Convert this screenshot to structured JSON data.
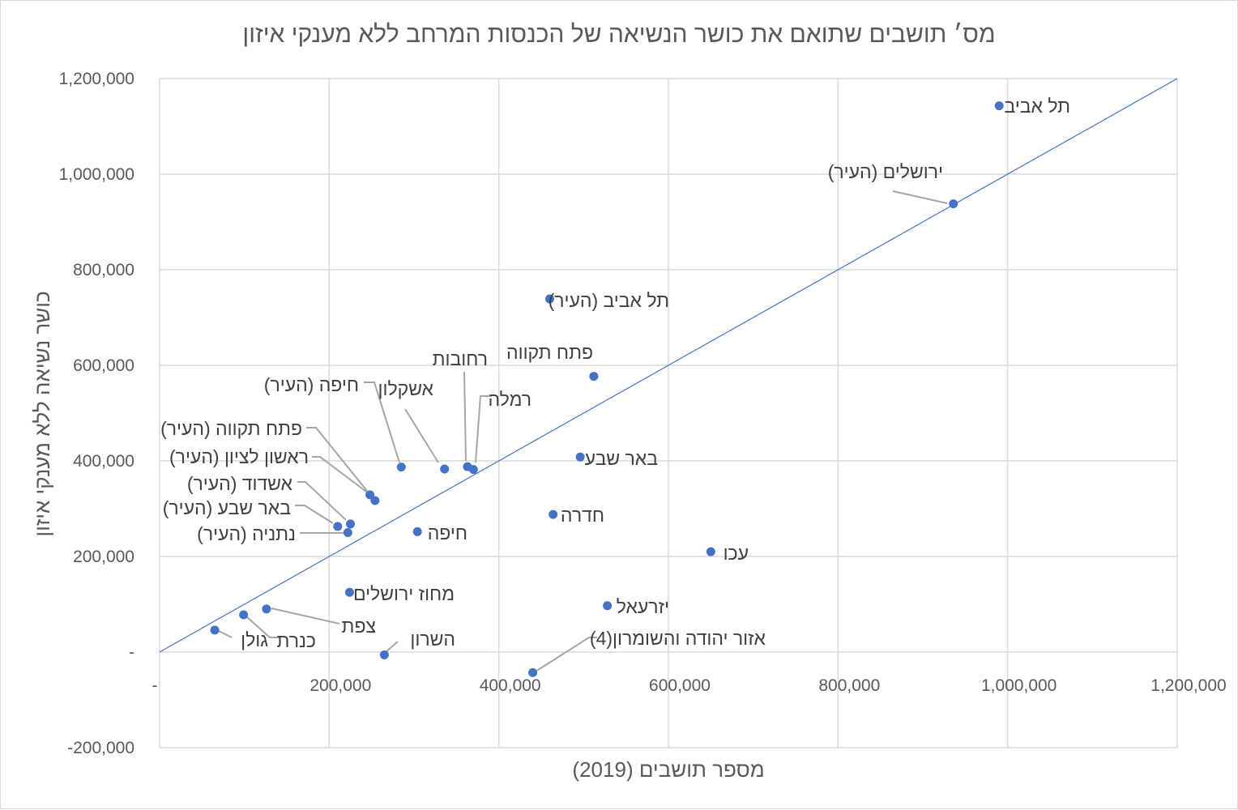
{
  "chart_data": {
    "type": "scatter",
    "title": "מס׳ תושבים שתואם את כושר הנשיאה של הכנסות המרחב ללא מענקי איזון",
    "xlabel": "מספר תושבים (2019)",
    "ylabel": "כושר נשיאה ללא מענקי איזון",
    "xlim": [
      0,
      1200000
    ],
    "ylim": [
      -200000,
      1200000
    ],
    "x_ticks": [
      200000,
      400000,
      600000,
      800000,
      1000000,
      1200000
    ],
    "x_tick_labels": [
      "200,000",
      "400,000",
      "600,000",
      "800,000",
      "1,000,000",
      "1,200,000"
    ],
    "x_zero_label": "-",
    "y_ticks": [
      -200000,
      0,
      200000,
      400000,
      600000,
      800000,
      1000000,
      1200000
    ],
    "y_tick_labels": [
      "-200,000",
      "-",
      "200,000",
      "400,000",
      "600,000",
      "800,000",
      "1,000,000",
      "1,200,000"
    ],
    "grid": true,
    "reference_line": {
      "from": [
        0,
        0
      ],
      "to": [
        1200000,
        1200000
      ]
    },
    "point_color": "#4472c4",
    "points": [
      {
        "label": "תל אביב",
        "x": 990000,
        "y": 1143000
      },
      {
        "label": "ירושלים (העיר)",
        "x": 936000,
        "y": 938000
      },
      {
        "label": "תל אביב (העיר)",
        "x": 460000,
        "y": 739000
      },
      {
        "label": "פתח תקווה",
        "x": 512000,
        "y": 577000
      },
      {
        "label": "רחובות",
        "x": 363000,
        "y": 388000
      },
      {
        "label": "רמלה",
        "x": 370000,
        "y": 382000
      },
      {
        "label": "אשקלון",
        "x": 336000,
        "y": 383000
      },
      {
        "label": "חיפה (העיר)",
        "x": 285000,
        "y": 387000
      },
      {
        "label": "פתח תקווה (העיר)",
        "x": 248000,
        "y": 329000
      },
      {
        "label": "ראשון לציון (העיר)",
        "x": 254000,
        "y": 317000
      },
      {
        "label": "אשדוד (העיר)",
        "x": 225000,
        "y": 268000
      },
      {
        "label": "באר שבע (העיר)",
        "x": 210000,
        "y": 263000
      },
      {
        "label": "נתניה (העיר)",
        "x": 222000,
        "y": 250000
      },
      {
        "label": "באר שבע",
        "x": 496000,
        "y": 408000
      },
      {
        "label": "חדרה",
        "x": 464000,
        "y": 288000
      },
      {
        "label": "חיפה",
        "x": 304000,
        "y": 252000
      },
      {
        "label": "עכו",
        "x": 650000,
        "y": 210000
      },
      {
        "label": "מחוז ירושלים",
        "x": 224000,
        "y": 125000
      },
      {
        "label": "יזרעאל",
        "x": 528000,
        "y": 97000
      },
      {
        "label": "צפת",
        "x": 126000,
        "y": 90000
      },
      {
        "label": "כנרת",
        "x": 99000,
        "y": 78000
      },
      {
        "label": "גולן",
        "x": 65000,
        "y": 46000
      },
      {
        "label": "השרון",
        "x": 265000,
        "y": -6000
      },
      {
        "label": "אזור יהודה והשומרון(4)",
        "x": 440000,
        "y": -43000
      }
    ]
  }
}
